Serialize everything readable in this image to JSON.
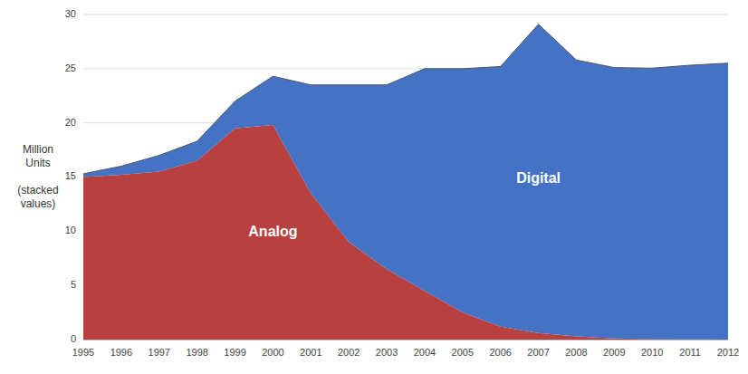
{
  "chart_data": {
    "type": "area",
    "stacked": true,
    "y_label": "Million\nUnits\n\n(stacked\nvalues)",
    "x": [
      1995,
      1996,
      1997,
      1998,
      1999,
      2000,
      2001,
      2002,
      2003,
      2004,
      2005,
      2006,
      2007,
      2008,
      2009,
      2010,
      2011,
      2012
    ],
    "series": [
      {
        "name": "Analog",
        "color": "#b94040",
        "values": [
          15.0,
          15.2,
          15.5,
          16.5,
          19.5,
          19.8,
          13.5,
          9.0,
          6.5,
          4.5,
          2.5,
          1.2,
          0.6,
          0.3,
          0.1,
          0.05,
          0.02,
          0.01
        ]
      },
      {
        "name": "Digital",
        "color": "#4472c4",
        "values": [
          0.3,
          0.8,
          1.5,
          1.8,
          2.5,
          4.5,
          10.0,
          14.5,
          17.0,
          20.5,
          22.5,
          24.0,
          28.5,
          25.5,
          25.0,
          25.0,
          25.3,
          25.5
        ]
      }
    ],
    "xlim": [
      1995,
      2012
    ],
    "xticks": [
      1995,
      1996,
      1997,
      1998,
      1999,
      2000,
      2001,
      2002,
      2003,
      2004,
      2005,
      2006,
      2007,
      2008,
      2009,
      2010,
      2011,
      2012
    ],
    "ylim": [
      0,
      30
    ],
    "yticks": [
      0,
      5,
      10,
      15,
      20,
      25,
      30
    ],
    "grid": true
  }
}
